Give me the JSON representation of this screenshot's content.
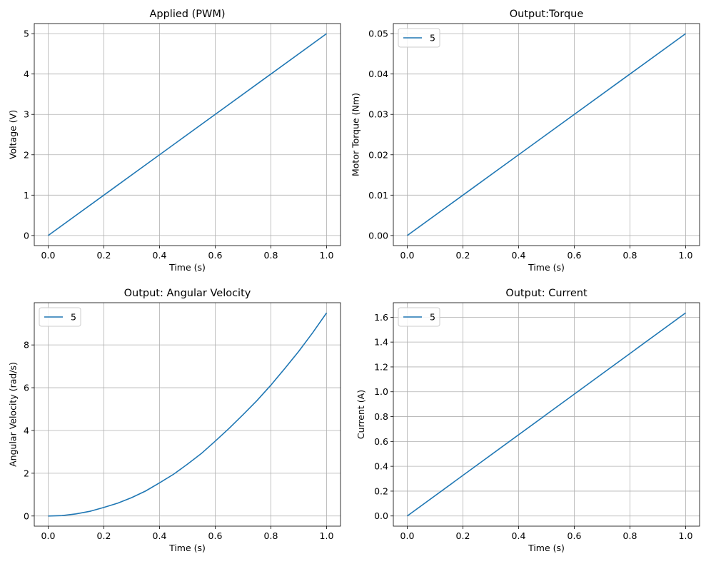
{
  "chart_data": [
    {
      "type": "line",
      "title": "Applied (PWM)",
      "xlabel": "Time (s)",
      "ylabel": "Voltage (V)",
      "xlim": [
        -0.05,
        1.05
      ],
      "ylim": [
        -0.25,
        5.25
      ],
      "xticks": [
        0.0,
        0.2,
        0.4,
        0.6,
        0.8,
        1.0
      ],
      "xtick_labels": [
        "0.0",
        "0.2",
        "0.4",
        "0.6",
        "0.8",
        "1.0"
      ],
      "yticks": [
        0,
        1,
        2,
        3,
        4,
        5
      ],
      "ytick_labels": [
        "0",
        "1",
        "2",
        "3",
        "4",
        "5"
      ],
      "grid": true,
      "legend": null,
      "series": [
        {
          "color": "#1f77b4",
          "x": [
            0,
            0.25,
            0.5,
            0.75,
            1.0
          ],
          "y": [
            0,
            1.25,
            2.5,
            3.75,
            5.0
          ]
        }
      ]
    },
    {
      "type": "line",
      "title": "Output:Torque",
      "xlabel": "Time (s)",
      "ylabel": "Motor Torque (Nm)",
      "xlim": [
        -0.05,
        1.05
      ],
      "ylim": [
        -0.0025,
        0.0525
      ],
      "xticks": [
        0.0,
        0.2,
        0.4,
        0.6,
        0.8,
        1.0
      ],
      "xtick_labels": [
        "0.0",
        "0.2",
        "0.4",
        "0.6",
        "0.8",
        "1.0"
      ],
      "yticks": [
        0.0,
        0.01,
        0.02,
        0.03,
        0.04,
        0.05
      ],
      "ytick_labels": [
        "0.00",
        "0.01",
        "0.02",
        "0.03",
        "0.04",
        "0.05"
      ],
      "grid": true,
      "legend": "upper-left",
      "series": [
        {
          "name": "5",
          "color": "#1f77b4",
          "x": [
            0,
            0.25,
            0.5,
            0.75,
            1.0
          ],
          "y": [
            0,
            0.0125,
            0.025,
            0.0375,
            0.05
          ]
        }
      ]
    },
    {
      "type": "line",
      "title": "Output: Angular Velocity",
      "xlabel": "Time (s)",
      "ylabel": "Angular Velocity (rad/s)",
      "xlim": [
        -0.05,
        1.05
      ],
      "ylim": [
        -0.475,
        9.975
      ],
      "xticks": [
        0.0,
        0.2,
        0.4,
        0.6,
        0.8,
        1.0
      ],
      "xtick_labels": [
        "0.0",
        "0.2",
        "0.4",
        "0.6",
        "0.8",
        "1.0"
      ],
      "yticks": [
        0,
        2,
        4,
        6,
        8
      ],
      "ytick_labels": [
        "0",
        "2",
        "4",
        "6",
        "8"
      ],
      "grid": true,
      "legend": "upper-left",
      "series": [
        {
          "name": "5",
          "color": "#1f77b4",
          "x": [
            0,
            0.05,
            0.1,
            0.15,
            0.2,
            0.25,
            0.3,
            0.35,
            0.4,
            0.45,
            0.5,
            0.55,
            0.6,
            0.65,
            0.7,
            0.75,
            0.8,
            0.85,
            0.9,
            0.95,
            1.0
          ],
          "y": [
            0,
            0.02,
            0.1,
            0.22,
            0.4,
            0.6,
            0.86,
            1.17,
            1.55,
            1.95,
            2.42,
            2.92,
            3.5,
            4.1,
            4.74,
            5.4,
            6.12,
            6.9,
            7.7,
            8.57,
            9.5
          ]
        }
      ]
    },
    {
      "type": "line",
      "title": "Output: Current",
      "xlabel": "Time (s)",
      "ylabel": "Current (A)",
      "xlim": [
        -0.05,
        1.05
      ],
      "ylim": [
        -0.082,
        1.717
      ],
      "xticks": [
        0.0,
        0.2,
        0.4,
        0.6,
        0.8,
        1.0
      ],
      "xtick_labels": [
        "0.0",
        "0.2",
        "0.4",
        "0.6",
        "0.8",
        "1.0"
      ],
      "yticks": [
        0.0,
        0.2,
        0.4,
        0.6,
        0.8,
        1.0,
        1.2,
        1.4,
        1.6
      ],
      "ytick_labels": [
        "0.0",
        "0.2",
        "0.4",
        "0.6",
        "0.8",
        "1.0",
        "1.2",
        "1.4",
        "1.6"
      ],
      "grid": true,
      "legend": "upper-left",
      "series": [
        {
          "name": "5",
          "color": "#1f77b4",
          "x": [
            0,
            0.25,
            0.5,
            0.75,
            1.0
          ],
          "y": [
            0,
            0.4087,
            0.8175,
            1.2262,
            1.635
          ]
        }
      ]
    }
  ]
}
